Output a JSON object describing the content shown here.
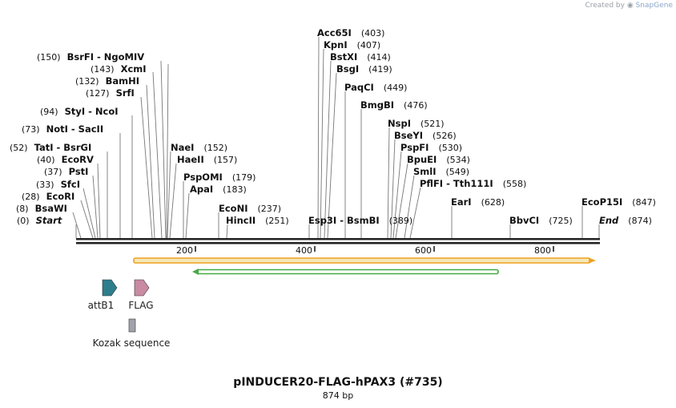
{
  "watermark": {
    "prefix": "Created by",
    "brand": "SnapGene"
  },
  "plasmid": {
    "name": "pINDUCER20-FLAG-hPAX3 (#735)",
    "length_label": "874 bp",
    "length": 874
  },
  "ruler_ticks": [
    "200",
    "400",
    "600",
    "800"
  ],
  "sites": [
    {
      "name": "Start",
      "pos": "(0)",
      "italic": true
    },
    {
      "name": "BsaWI",
      "pos": "(8)"
    },
    {
      "name": "EcoRI",
      "pos": "(28)"
    },
    {
      "name": "SfcI",
      "pos": "(33)"
    },
    {
      "name": "PstI",
      "pos": "(37)"
    },
    {
      "name": "EcoRV",
      "pos": "(40)"
    },
    {
      "name": "TatI  -  BsrGI",
      "pos": "(52)"
    },
    {
      "name": "NotI  -  SacII",
      "pos": "(73)"
    },
    {
      "name": "StyI  -  NcoI",
      "pos": "(94)"
    },
    {
      "name": "SrfI",
      "pos": "(127)"
    },
    {
      "name": "BamHI",
      "pos": "(132)"
    },
    {
      "name": "XcmI",
      "pos": "(143)"
    },
    {
      "name": "BsrFI  -  NgoMIV",
      "pos": "(150)"
    },
    {
      "name": "NaeI",
      "pos": "(152)"
    },
    {
      "name": "HaeII",
      "pos": "(157)"
    },
    {
      "name": "PspOMI",
      "pos": "(179)"
    },
    {
      "name": "ApaI",
      "pos": "(183)"
    },
    {
      "name": "EcoNI",
      "pos": "(237)"
    },
    {
      "name": "HincII",
      "pos": "(251)"
    },
    {
      "name": "Esp3I  -  BsmBI",
      "pos": "(389)"
    },
    {
      "name": "Acc65I",
      "pos": "(403)"
    },
    {
      "name": "KpnI",
      "pos": "(407)"
    },
    {
      "name": "BstXI",
      "pos": "(414)"
    },
    {
      "name": "BsgI",
      "pos": "(419)"
    },
    {
      "name": "PaqCI",
      "pos": "(449)"
    },
    {
      "name": "BmgBI",
      "pos": "(476)"
    },
    {
      "name": "NspI",
      "pos": "(521)"
    },
    {
      "name": "BseYI",
      "pos": "(526)"
    },
    {
      "name": "PspFI",
      "pos": "(530)"
    },
    {
      "name": "BpuEI",
      "pos": "(534)"
    },
    {
      "name": "SmlI",
      "pos": "(549)"
    },
    {
      "name": "PflFI  -  Tth111I",
      "pos": "(558)"
    },
    {
      "name": "EarI",
      "pos": "(628)"
    },
    {
      "name": "BbvCI",
      "pos": "(725)"
    },
    {
      "name": "EcoP15I",
      "pos": "(847)"
    },
    {
      "name": "End",
      "pos": "(874)",
      "italic": true
    }
  ],
  "features": [
    {
      "name": "attB1",
      "color": "#2e7d8c",
      "kind": "arrow"
    },
    {
      "name": "FLAG",
      "color": "#c98aa3",
      "kind": "arrow"
    },
    {
      "name": "Kozak sequence",
      "color": "#a0a4aa",
      "kind": "box"
    }
  ],
  "orf_colors": {
    "outer": "#f0a020",
    "outer_fill": "#f5e8b8",
    "inner": "#44aa44"
  }
}
